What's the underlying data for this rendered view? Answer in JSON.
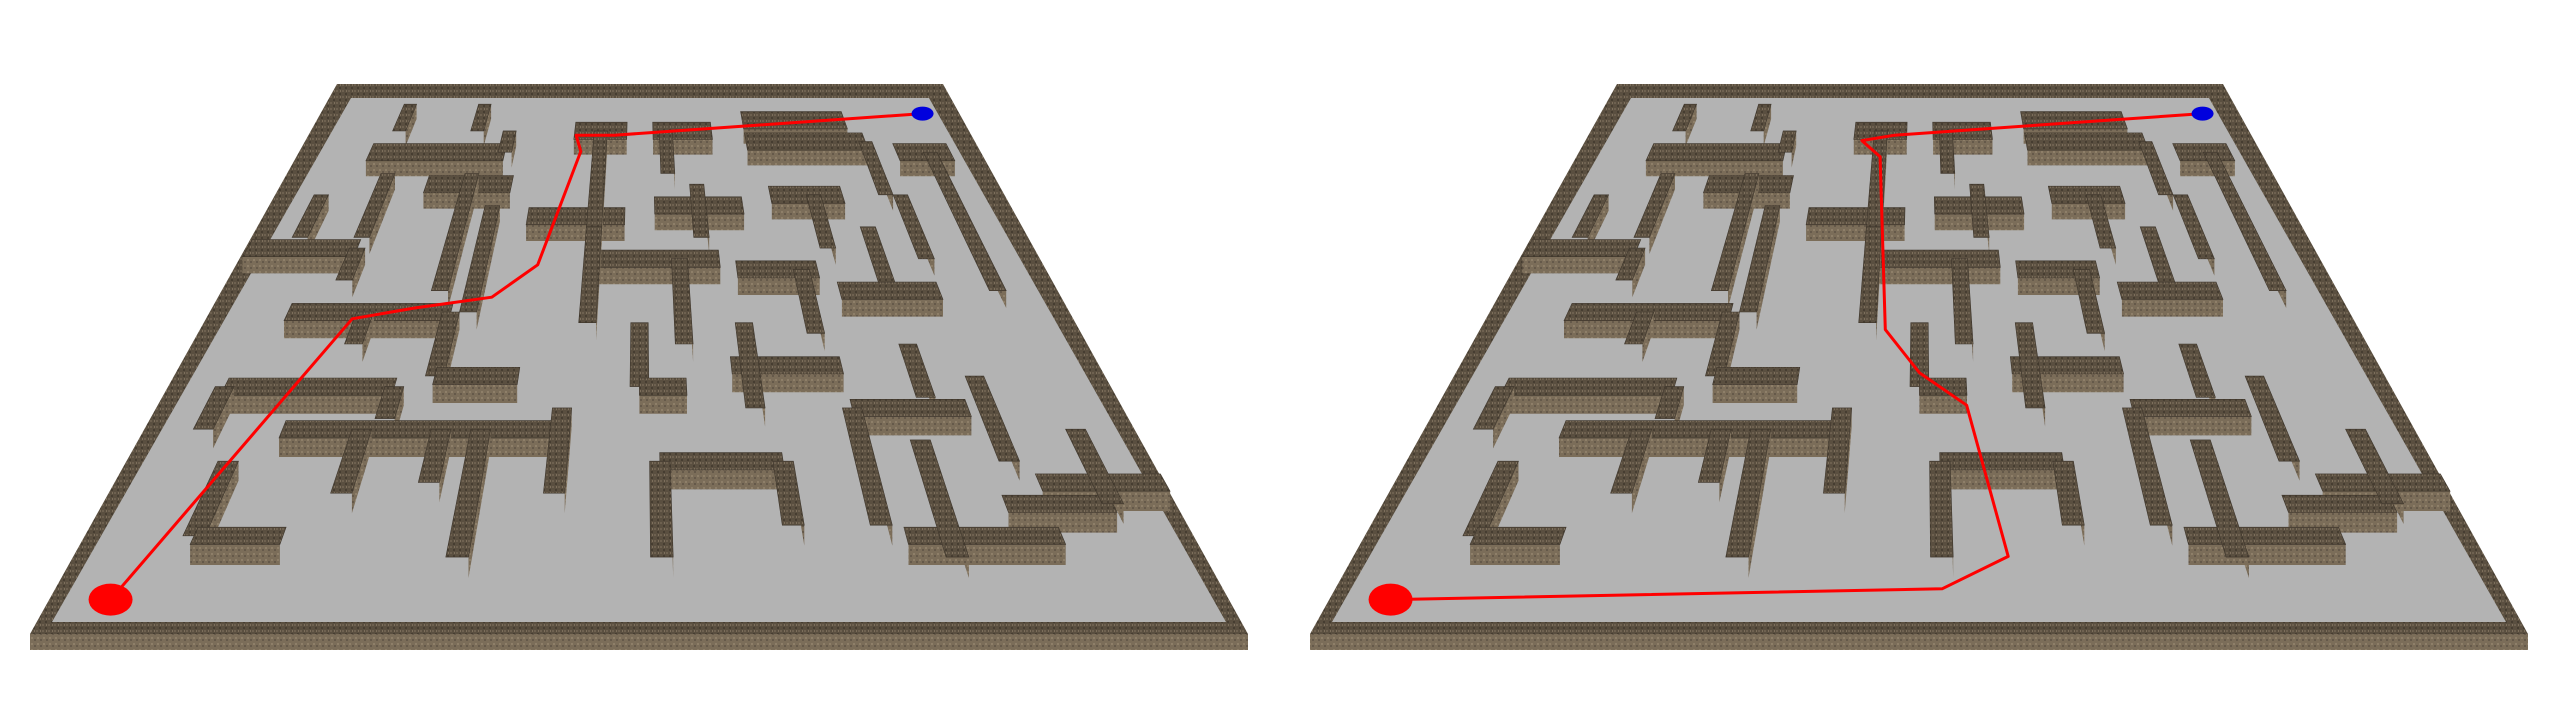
{
  "scene": {
    "colors": {
      "background": "#ffffff",
      "floor": "#b3b3b3",
      "wall_top": "#544a3c",
      "wall_face": "#7a6c58",
      "wall_side": "#3d352b",
      "path": "#ff0000",
      "start_marker": "#ff0000",
      "goal_marker": "#0000dd"
    },
    "panels": [
      {
        "name": "maze-panel-left",
        "path_label": "shortest-path-route"
      },
      {
        "name": "maze-panel-right",
        "path_label": "alternate-path-route"
      }
    ]
  }
}
